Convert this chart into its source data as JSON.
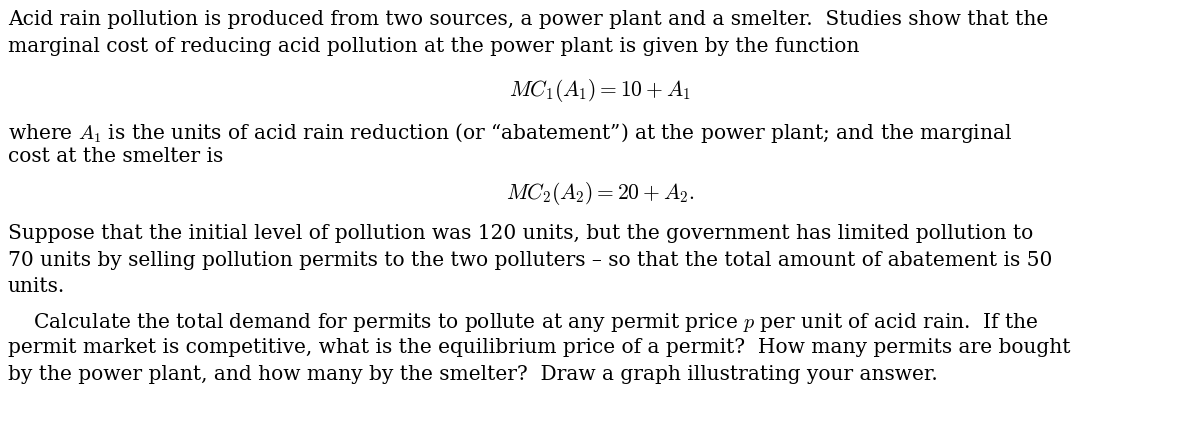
{
  "bg_color": "#ffffff",
  "text_color": "#000000",
  "font_family": "serif",
  "body_fontsize": 14.5,
  "math_fontsize": 15.5,
  "fig_width": 12.0,
  "fig_height": 4.47,
  "paragraph1_line1": "Acid rain pollution is produced from two sources, a power plant and a smelter.  Studies show that the",
  "paragraph1_line2": "marginal cost of reducing acid pollution at the power plant is given by the function",
  "equation1": "$MC_1(A_1) = 10 + A_1$",
  "paragraph2_line1": "where $A_1$ is the units of acid rain reduction (or “abatement”) at the power plant; and the marginal",
  "paragraph2_line2": "cost at the smelter is",
  "equation2": "$MC_2(A_2) = 20 + A_2.$",
  "paragraph3_line1": "Suppose that the initial level of pollution was 120 units, but the government has limited pollution to",
  "paragraph3_line2": "70 units by selling pollution permits to the two polluters – so that the total amount of abatement is 50",
  "paragraph3_line3": "units.",
  "paragraph4_line1": "    Calculate the total demand for permits to pollute at any permit price $p$ per unit of acid rain.  If the",
  "paragraph4_line2": "permit market is competitive, what is the equilibrium price of a permit?  How many permits are bought",
  "paragraph4_line3": "by the power plant, and how many by the smelter?  Draw a graph illustrating your answer."
}
